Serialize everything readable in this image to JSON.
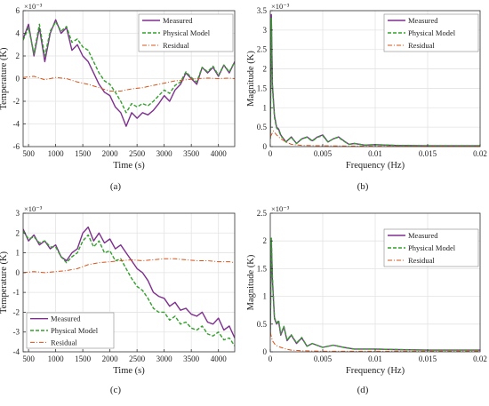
{
  "figure": {
    "colors": {
      "measured": "#7e2f8e",
      "physical": "#33a02c",
      "residual": "#d95319",
      "grid": "#e3e3e3",
      "axis": "#333333"
    }
  },
  "chart_data": [
    {
      "panel_label": "(a)",
      "type": "line",
      "xlabel": "Time (s)",
      "ylabel": "Temperature (K)",
      "exponent": "×10⁻³",
      "xlim": [
        400,
        4300
      ],
      "ylim": [
        -6,
        6
      ],
      "xticks": [
        500,
        1000,
        1500,
        2000,
        2500,
        3000,
        3500,
        4000
      ],
      "yticks": [
        -6,
        -4,
        -2,
        0,
        2,
        4,
        6
      ],
      "grid": true,
      "legend_position": "top-right",
      "series": [
        {
          "name": "Measured",
          "style": "solid",
          "x": [
            400,
            500,
            600,
            700,
            800,
            900,
            1000,
            1100,
            1200,
            1300,
            1400,
            1500,
            1600,
            1700,
            1800,
            1900,
            2000,
            2100,
            2200,
            2300,
            2400,
            2500,
            2600,
            2700,
            2800,
            2900,
            3000,
            3100,
            3200,
            3300,
            3400,
            3500,
            3600,
            3700,
            3800,
            3900,
            4000,
            4100,
            4200,
            4300
          ],
          "y": [
            3.5,
            4.8,
            2.0,
            4.5,
            1.5,
            4.0,
            5.2,
            4.0,
            4.5,
            2.5,
            3.0,
            2.0,
            1.5,
            0.5,
            -0.5,
            -1.2,
            -1.5,
            -2.5,
            -3.0,
            -4.2,
            -3.0,
            -3.5,
            -3.0,
            -3.2,
            -2.8,
            -2.2,
            -1.5,
            -2.0,
            -1.0,
            -0.5,
            0.5,
            0.0,
            -0.5,
            1.0,
            0.5,
            1.0,
            0.2,
            1.2,
            0.5,
            1.5
          ]
        },
        {
          "name": "Physical Model",
          "style": "dashed",
          "x": [
            400,
            500,
            600,
            700,
            800,
            900,
            1000,
            1100,
            1200,
            1300,
            1400,
            1500,
            1600,
            1700,
            1800,
            1900,
            2000,
            2100,
            2200,
            2300,
            2400,
            2500,
            2600,
            2700,
            2800,
            2900,
            3000,
            3100,
            3200,
            3300,
            3400,
            3500,
            3600,
            3700,
            3800,
            3900,
            4000,
            4100,
            4200,
            4300
          ],
          "y": [
            3.4,
            4.5,
            2.2,
            4.8,
            2.0,
            4.2,
            5.0,
            4.2,
            4.6,
            3.2,
            3.5,
            2.8,
            2.5,
            1.5,
            0.5,
            -0.2,
            -0.5,
            -1.2,
            -2.0,
            -3.0,
            -2.2,
            -2.5,
            -2.2,
            -2.4,
            -2.0,
            -1.5,
            -1.0,
            -1.3,
            -0.6,
            -0.3,
            0.6,
            0.1,
            -0.3,
            1.0,
            0.6,
            1.1,
            0.3,
            1.2,
            0.6,
            1.5
          ]
        },
        {
          "name": "Residual",
          "style": "dashdot",
          "x": [
            400,
            600,
            800,
            1000,
            1200,
            1400,
            1600,
            1800,
            2000,
            2200,
            2400,
            2600,
            2800,
            3000,
            3200,
            3400,
            3600,
            3800,
            4000,
            4200,
            4300
          ],
          "y": [
            0.1,
            0.2,
            -0.1,
            0.1,
            0.0,
            -0.3,
            -0.5,
            -0.8,
            -1.1,
            -1.1,
            -0.9,
            -0.8,
            -0.6,
            -0.4,
            -0.2,
            -0.1,
            0.0,
            0.05,
            0.0,
            0.05,
            0.0
          ]
        }
      ]
    },
    {
      "panel_label": "(b)",
      "type": "line",
      "xlabel": "Frequency (Hz)",
      "ylabel": "Magnitude (K)",
      "exponent": "×10⁻³",
      "xlim": [
        0,
        0.02
      ],
      "ylim": [
        0,
        3.5
      ],
      "xticks": [
        0,
        0.005,
        0.01,
        0.015,
        0.02
      ],
      "xtick_labels": [
        "0",
        "0.005",
        "0.01",
        "0.015",
        "0.02"
      ],
      "yticks": [
        0,
        0.5,
        1,
        1.5,
        2,
        2.5,
        3,
        3.5
      ],
      "grid": true,
      "legend_position": "top-right",
      "series": [
        {
          "name": "Measured",
          "style": "solid",
          "x": [
            0,
            0.0001,
            0.0002,
            0.0004,
            0.0006,
            0.0008,
            0.001,
            0.0015,
            0.002,
            0.0025,
            0.003,
            0.0035,
            0.004,
            0.0045,
            0.005,
            0.0055,
            0.006,
            0.0065,
            0.007,
            0.0075,
            0.008,
            0.009,
            0.01,
            0.012,
            0.015,
            0.02
          ],
          "y": [
            0.2,
            3.4,
            1.6,
            0.8,
            0.5,
            0.45,
            0.3,
            0.12,
            0.25,
            0.08,
            0.2,
            0.25,
            0.15,
            0.25,
            0.3,
            0.12,
            0.2,
            0.25,
            0.15,
            0.06,
            0.08,
            0.04,
            0.05,
            0.03,
            0.02,
            0.02
          ]
        },
        {
          "name": "Physical Model",
          "style": "dashed",
          "x": [
            0,
            0.0001,
            0.0002,
            0.0004,
            0.0006,
            0.0008,
            0.001,
            0.0015,
            0.002,
            0.0025,
            0.003,
            0.0035,
            0.004,
            0.0045,
            0.005,
            0.0055,
            0.006,
            0.0065,
            0.007,
            0.0075,
            0.008,
            0.009,
            0.01,
            0.012,
            0.015,
            0.02
          ],
          "y": [
            0.2,
            3.3,
            1.5,
            0.75,
            0.48,
            0.42,
            0.28,
            0.12,
            0.24,
            0.08,
            0.2,
            0.24,
            0.14,
            0.24,
            0.28,
            0.12,
            0.2,
            0.24,
            0.14,
            0.06,
            0.08,
            0.04,
            0.05,
            0.03,
            0.02,
            0.02
          ]
        },
        {
          "name": "Residual",
          "style": "dashdot",
          "x": [
            0,
            0.0003,
            0.0006,
            0.001,
            0.0015,
            0.002,
            0.003,
            0.005,
            0.01,
            0.02
          ],
          "y": [
            0.25,
            0.4,
            0.3,
            0.2,
            0.12,
            0.06,
            0.03,
            0.02,
            0.01,
            0.01
          ]
        }
      ]
    },
    {
      "panel_label": "(c)",
      "type": "line",
      "xlabel": "Time (s)",
      "ylabel": "Temperature (K)",
      "exponent": "×10⁻³",
      "xlim": [
        400,
        4300
      ],
      "ylim": [
        -4,
        3
      ],
      "xticks": [
        500,
        1000,
        1500,
        2000,
        2500,
        3000,
        3500,
        4000
      ],
      "yticks": [
        -4,
        -3,
        -2,
        -1,
        0,
        1,
        2,
        3
      ],
      "grid": true,
      "legend_position": "bottom-left",
      "series": [
        {
          "name": "Measured",
          "style": "solid",
          "x": [
            400,
            500,
            600,
            700,
            800,
            900,
            1000,
            1100,
            1200,
            1300,
            1400,
            1500,
            1600,
            1700,
            1800,
            1900,
            2000,
            2100,
            2200,
            2300,
            2400,
            2500,
            2600,
            2700,
            2800,
            2900,
            3000,
            3100,
            3200,
            3300,
            3400,
            3500,
            3600,
            3700,
            3800,
            3900,
            4000,
            4100,
            4200,
            4300
          ],
          "y": [
            2.2,
            1.6,
            1.9,
            1.4,
            1.6,
            1.2,
            1.4,
            0.8,
            0.6,
            1.0,
            1.2,
            2.0,
            2.3,
            1.6,
            2.0,
            1.5,
            1.7,
            1.2,
            1.4,
            1.0,
            0.6,
            0.2,
            0.0,
            -0.4,
            -1.0,
            -1.2,
            -1.3,
            -1.7,
            -1.5,
            -1.9,
            -1.8,
            -2.1,
            -2.2,
            -2.0,
            -2.5,
            -2.6,
            -2.3,
            -2.9,
            -2.7,
            -3.3
          ]
        },
        {
          "name": "Physical Model",
          "style": "dashed",
          "x": [
            400,
            500,
            600,
            700,
            800,
            900,
            1000,
            1100,
            1200,
            1300,
            1400,
            1500,
            1600,
            1700,
            1800,
            1900,
            2000,
            2100,
            2200,
            2300,
            2400,
            2500,
            2600,
            2700,
            2800,
            2900,
            3000,
            3100,
            3200,
            3300,
            3400,
            3500,
            3600,
            3700,
            3800,
            3900,
            4000,
            4100,
            4200,
            4300
          ],
          "y": [
            2.1,
            1.7,
            1.8,
            1.5,
            1.6,
            1.3,
            1.3,
            0.8,
            0.5,
            0.8,
            1.0,
            1.6,
            1.9,
            1.3,
            1.6,
            1.0,
            1.1,
            0.6,
            0.7,
            0.2,
            -0.3,
            -0.7,
            -0.9,
            -1.3,
            -1.8,
            -2.0,
            -2.0,
            -2.4,
            -2.2,
            -2.6,
            -2.5,
            -2.8,
            -2.9,
            -2.7,
            -3.1,
            -3.2,
            -3.0,
            -3.4,
            -3.3,
            -3.7
          ]
        },
        {
          "name": "Residual",
          "style": "dashdot",
          "x": [
            400,
            600,
            800,
            1000,
            1200,
            1400,
            1600,
            1800,
            2000,
            2200,
            2400,
            2600,
            2800,
            3000,
            3200,
            3400,
            3600,
            3800,
            4000,
            4200,
            4300
          ],
          "y": [
            0.0,
            0.05,
            0.0,
            0.05,
            0.1,
            0.2,
            0.4,
            0.5,
            0.55,
            0.6,
            0.65,
            0.6,
            0.65,
            0.7,
            0.7,
            0.65,
            0.6,
            0.6,
            0.55,
            0.55,
            0.5
          ]
        }
      ]
    },
    {
      "panel_label": "(d)",
      "type": "line",
      "xlabel": "Frequency (Hz)",
      "ylabel": "Magnitude (K)",
      "exponent": "×10⁻³",
      "xlim": [
        0,
        0.02
      ],
      "ylim": [
        0,
        2.5
      ],
      "xticks": [
        0,
        0.005,
        0.01,
        0.015,
        0.02
      ],
      "xtick_labels": [
        "0",
        "0.005",
        "0.01",
        "0.015",
        "0.02"
      ],
      "yticks": [
        0,
        0.5,
        1,
        1.5,
        2,
        2.5
      ],
      "grid": true,
      "legend_position": "top-right",
      "series": [
        {
          "name": "Measured",
          "style": "solid",
          "x": [
            0,
            0.0001,
            0.0002,
            0.0004,
            0.0006,
            0.0008,
            0.001,
            0.0013,
            0.0016,
            0.002,
            0.0025,
            0.003,
            0.0035,
            0.004,
            0.005,
            0.006,
            0.007,
            0.008,
            0.01,
            0.012,
            0.015,
            0.02
          ],
          "y": [
            0.3,
            2.0,
            1.3,
            0.6,
            0.5,
            0.55,
            0.3,
            0.45,
            0.2,
            0.3,
            0.15,
            0.25,
            0.1,
            0.15,
            0.08,
            0.12,
            0.08,
            0.05,
            0.05,
            0.04,
            0.03,
            0.03
          ]
        },
        {
          "name": "Physical Model",
          "style": "dashed",
          "x": [
            0,
            0.0001,
            0.0002,
            0.0004,
            0.0006,
            0.0008,
            0.001,
            0.0013,
            0.0016,
            0.002,
            0.0025,
            0.003,
            0.0035,
            0.004,
            0.005,
            0.006,
            0.007,
            0.008,
            0.01,
            0.012,
            0.015,
            0.02
          ],
          "y": [
            0.3,
            2.05,
            1.35,
            0.62,
            0.52,
            0.57,
            0.32,
            0.46,
            0.21,
            0.31,
            0.16,
            0.26,
            0.1,
            0.15,
            0.08,
            0.12,
            0.08,
            0.05,
            0.05,
            0.04,
            0.03,
            0.03
          ]
        },
        {
          "name": "Residual",
          "style": "dashdot",
          "x": [
            0,
            0.0002,
            0.0005,
            0.001,
            0.0015,
            0.002,
            0.003,
            0.005,
            0.01,
            0.02
          ],
          "y": [
            0.35,
            0.2,
            0.12,
            0.08,
            0.05,
            0.03,
            0.02,
            0.01,
            0.01,
            0.01
          ]
        }
      ]
    }
  ]
}
